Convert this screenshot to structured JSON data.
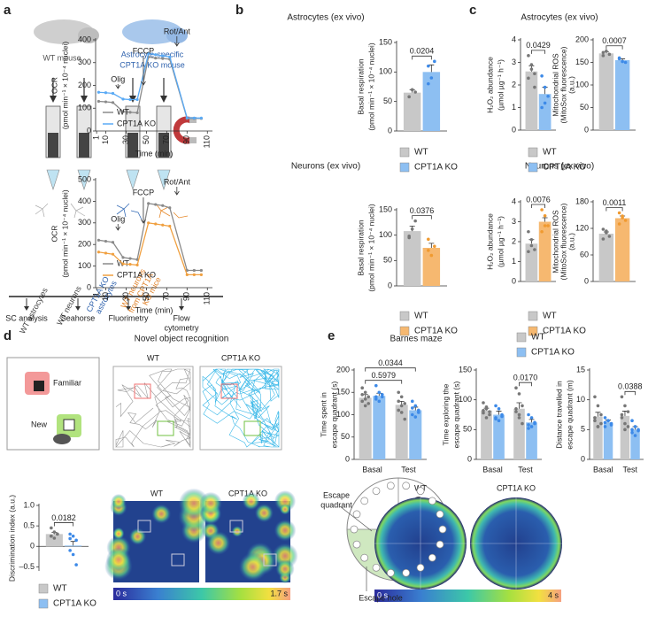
{
  "panel_letters": [
    "a",
    "b",
    "c",
    "d",
    "e"
  ],
  "panel_a": {
    "wt_mouse": "WT mouse",
    "ko_mouse": [
      "Astrocyte-specific",
      "CPT1A KO mouse"
    ],
    "samples": [
      [
        "WT astrocytes"
      ],
      [
        "WT neurons"
      ],
      [
        "CPT1A KO",
        "astrocytes"
      ],
      [
        "WT neurons",
        "from CPT1A",
        "KO mice"
      ]
    ],
    "methods": [
      [
        "SC analysis"
      ],
      [
        "Seahorse"
      ],
      [
        "Fluorimetry"
      ],
      [
        "Flow",
        "cytometry"
      ]
    ]
  },
  "titles": {
    "b": [
      "Astrocytes (ex vivo)",
      "Neurons (ex vivo)"
    ],
    "c": [
      "Astrocytes (ex vivo)",
      "Neurons (ex vivo)"
    ],
    "d": "Novel object recognition",
    "e": "Barnes maze"
  },
  "panel_d": {
    "familiar": "Familiar",
    "new": "New",
    "tracks": [
      "WT",
      "CPT1A KO"
    ],
    "heatmaps": [
      "WT",
      "CPT1A KO"
    ],
    "colorbar": [
      "0 s",
      "1.7 s"
    ]
  },
  "panel_e": {
    "escape_quadrant": [
      "Escape",
      "quadrant"
    ],
    "escape_hole": "Escape hole",
    "heatmaps": [
      "WT",
      "CPT1A KO"
    ],
    "colorbar": [
      "0 s",
      "4 s"
    ]
  },
  "chart_data": [
    {
      "type": "line",
      "ylabel": [
        "OCR",
        "(pmol min⁻¹ × 10⁻⁴ nuclei)"
      ],
      "xlabel": "Time (min)",
      "x": [
        3,
        10,
        17,
        27,
        34,
        41,
        52,
        59,
        66,
        73,
        90,
        97,
        104
      ],
      "series": [
        {
          "name": "WT",
          "color": "#8a8a8a",
          "values": [
            130,
            128,
            125,
            85,
            82,
            80,
            325,
            320,
            318,
            315,
            55,
            55,
            55
          ]
        },
        {
          "name": "CPT1A KO",
          "color": "#5aaaf5",
          "values": [
            170,
            168,
            165,
            140,
            138,
            138,
            340,
            335,
            330,
            325,
            58,
            57,
            57
          ]
        }
      ],
      "xlim": [
        0,
        115
      ],
      "xticks": [
        1,
        10,
        30,
        50,
        70,
        90,
        110
      ],
      "ylim": [
        0,
        400
      ],
      "yticks": [
        0,
        100,
        200,
        300,
        400
      ],
      "annotations": [
        {
          "label": "Olig",
          "x": 22
        },
        {
          "label": "FCCP",
          "x": 47
        },
        {
          "label": "Rot/Ant",
          "x": 80
        }
      ]
    },
    {
      "type": "bar",
      "ylabel": [
        "Basal respiration",
        "(pmol min⁻¹ × 10⁻⁴ nuclei)"
      ],
      "series": [
        {
          "name": "WT",
          "color": "#c8c8c8",
          "values": [
            65
          ],
          "errors": [
            5
          ],
          "points": [
            [
              58,
              70,
              66
            ]
          ]
        },
        {
          "name": "CPT1A KO",
          "color": "#8dbff2",
          "values": [
            100
          ],
          "errors": [
            12
          ],
          "points": [
            [
              80,
              90,
              118,
              110
            ]
          ]
        }
      ],
      "ylim": [
        0,
        150
      ],
      "yticks": [
        0,
        50,
        100,
        150
      ],
      "pvalues": [
        "0.0204"
      ]
    },
    {
      "type": "line",
      "ylabel": [
        "OCR",
        "(pmol min⁻¹ × 10⁻⁴ nuclei)"
      ],
      "xlabel": "Time (min)",
      "x": [
        3,
        10,
        17,
        27,
        34,
        41,
        52,
        59,
        66,
        73,
        90,
        97,
        104
      ],
      "series": [
        {
          "name": "WT",
          "color": "#8a8a8a",
          "values": [
            220,
            215,
            210,
            140,
            135,
            130,
            390,
            385,
            380,
            370,
            80,
            80,
            80
          ]
        },
        {
          "name": "CPT1A KO",
          "color": "#f0a040",
          "values": [
            165,
            160,
            155,
            110,
            108,
            105,
            300,
            295,
            290,
            285,
            60,
            60,
            60
          ]
        }
      ],
      "xlim": [
        0,
        115
      ],
      "xticks": [
        1,
        10,
        30,
        50,
        70,
        90,
        110
      ],
      "ylim": [
        0,
        500
      ],
      "yticks": [
        0,
        100,
        200,
        300,
        400,
        500
      ],
      "annotations": [
        {
          "label": "Olig",
          "x": 22
        },
        {
          "label": "FCCP",
          "x": 47
        },
        {
          "label": "Rot/Ant",
          "x": 80
        }
      ]
    },
    {
      "type": "bar",
      "ylabel": [
        "Basal respiration",
        "(pmol min⁻¹ × 10⁻⁴ nuclei)"
      ],
      "series": [
        {
          "name": "WT",
          "color": "#c8c8c8",
          "values": [
            108
          ],
          "errors": [
            10
          ],
          "points": [
            [
              95,
              112,
              128,
              98
            ]
          ]
        },
        {
          "name": "CPT1A KO",
          "color": "#f6b870",
          "values": [
            75
          ],
          "errors": [
            9
          ],
          "points": [
            [
              92,
              60,
              78,
              70
            ]
          ]
        }
      ],
      "ylim": [
        0,
        150
      ],
      "yticks": [
        0,
        50,
        100,
        150
      ],
      "pvalues": [
        "0.0376"
      ]
    },
    {
      "type": "bar",
      "ylabel": [
        "H₂O₂ abundance",
        "(µmol µg⁻¹ h⁻¹)"
      ],
      "series": [
        {
          "name": "WT",
          "color": "#c8c8c8",
          "values": [
            2.6
          ],
          "errors": [
            0.25
          ],
          "points": [
            [
              3.3,
              2.9,
              2.5,
              2.3,
              2.7,
              1.9
            ]
          ]
        },
        {
          "name": "CPT1A KO",
          "color": "#8dbff2",
          "values": [
            1.6
          ],
          "errors": [
            0.3
          ],
          "points": [
            [
              2.4,
              1.9,
              1.5,
              1.0,
              1.2
            ]
          ]
        }
      ],
      "ylim": [
        0,
        4
      ],
      "yticks": [
        0,
        1,
        2,
        3,
        4
      ],
      "pvalues": [
        "0.0429"
      ]
    },
    {
      "type": "bar",
      "ylabel": [
        "Mitochondrial ROS",
        "(MitoSox fluorescence)",
        "(a.u.)"
      ],
      "series": [
        {
          "color": "#c8c8c8",
          "values": [
            170
          ],
          "errors": [
            3
          ],
          "points": [
            [
              172,
              175,
              168,
              165
            ]
          ]
        },
        {
          "color": "#8dbff2",
          "values": [
            155
          ],
          "errors": [
            3
          ],
          "points": [
            [
              160,
              152,
              150,
              158
            ]
          ]
        }
      ],
      "ylim": [
        0,
        200
      ],
      "yticks": [
        0,
        50,
        100,
        150,
        200
      ],
      "pvalues": [
        "0.0007"
      ]
    },
    {
      "type": "bar",
      "ylabel": [
        "H₂O₂ abundance",
        "(µmol µg⁻¹ h⁻¹)"
      ],
      "series": [
        {
          "name": "WT",
          "color": "#c8c8c8",
          "values": [
            1.9
          ],
          "errors": [
            0.2
          ],
          "points": [
            [
              2.5,
              2.1,
              1.6,
              1.5,
              1.8
            ]
          ]
        },
        {
          "name": "CPT1A KO",
          "color": "#f6b870",
          "values": [
            3.0
          ],
          "errors": [
            0.2
          ],
          "points": [
            [
              3.6,
              3.3,
              2.8,
              2.5,
              2.8
            ]
          ]
        }
      ],
      "ylim": [
        0,
        4
      ],
      "yticks": [
        0,
        1,
        2,
        3,
        4
      ],
      "pvalues": [
        "0.0076"
      ]
    },
    {
      "type": "bar",
      "ylabel": [
        "Mitochondrial ROS",
        "(MitoSox fluorescence)",
        "(a.u.)"
      ],
      "series": [
        {
          "color": "#c8c8c8",
          "values": [
            108
          ],
          "errors": [
            4
          ],
          "points": [
            [
              118,
              110,
              102,
              96,
              114
            ]
          ]
        },
        {
          "color": "#f6b870",
          "values": [
            143
          ],
          "errors": [
            5
          ],
          "points": [
            [
              155,
              148,
              138,
              130,
              144
            ]
          ]
        }
      ],
      "ylim": [
        0,
        180
      ],
      "yticks": [
        0,
        60,
        120,
        180
      ],
      "pvalues": [
        "0.0011"
      ]
    },
    {
      "type": "bar",
      "ylabel": [
        "Discrimination index (a.u.)"
      ],
      "series": [
        {
          "name": "WT",
          "color": "#c8c8c8",
          "values": [
            0.3
          ],
          "errors": [
            0.04
          ],
          "points": [
            [
              0.45,
              0.35,
              0.3,
              0.25,
              0.2,
              0.3,
              0.25
            ]
          ]
        },
        {
          "name": "CPT1A KO",
          "color": "#8dbff2",
          "values": [
            0.02
          ],
          "errors": [
            0.1
          ],
          "points": [
            [
              0.3,
              0.25,
              0.15,
              -0.1,
              -0.2,
              -0.45,
              0.19
            ]
          ]
        }
      ],
      "ylim": [
        -0.6,
        1.0
      ],
      "yticks": [
        {
          "value": -0.5,
          "label": "–0.5"
        },
        0,
        0.5,
        {
          "value": 1,
          "label": "1.0"
        }
      ],
      "pvalues": [
        "0.0182"
      ]
    },
    {
      "type": "bar",
      "ylabel": [
        "Time spent in",
        "escape quadrant (s)"
      ],
      "categories": [
        "Basal",
        "Test"
      ],
      "series": [
        {
          "name": "WT",
          "color": "#c8c8c8",
          "values": [
            138,
            122
          ],
          "errors": [
            7,
            8
          ],
          "points": [
            [
              160,
              150,
              140,
              130,
              120,
              125,
              145,
              135
            ],
            [
              150,
              140,
              125,
              110,
              105,
              90,
              130,
              120
            ]
          ]
        },
        {
          "name": "CPT1A KO",
          "color": "#8dbff2",
          "values": [
            142,
            110
          ],
          "errors": [
            6,
            7
          ],
          "points": [
            [
              165,
              150,
              140,
              135,
              130,
              145,
              140
            ],
            [
              130,
              120,
              110,
              100,
              95,
              105,
              115
            ]
          ]
        }
      ],
      "ylim": [
        0,
        200
      ],
      "yticks": [
        0,
        50,
        100,
        150,
        200
      ],
      "pvalues": [
        "0.5979",
        "0.0344"
      ]
    },
    {
      "type": "bar",
      "ylabel": [
        "Time exploring the",
        "escape quadrant (s)"
      ],
      "categories": [
        "Basal",
        "Test"
      ],
      "series": [
        {
          "color": "#c8c8c8",
          "values": [
            82,
            85
          ],
          "errors": [
            4,
            10
          ],
          "points": [
            [
              95,
              88,
              80,
              78,
              85,
              75,
              82,
              70
            ],
            [
              120,
              110,
              90,
              80,
              75,
              60,
              85,
              70
            ]
          ]
        },
        {
          "color": "#8dbff2",
          "values": [
            75,
            62
          ],
          "errors": [
            6,
            5
          ],
          "points": [
            [
              90,
              85,
              75,
              70,
              65,
              72,
              68
            ],
            [
              75,
              70,
              62,
              58,
              55,
              60,
              52
            ]
          ]
        }
      ],
      "ylim": [
        0,
        150
      ],
      "yticks": [
        0,
        50,
        100,
        150
      ],
      "pvalues": [
        "0.0170"
      ]
    },
    {
      "type": "bar",
      "ylabel": [
        "Distance travelled in",
        "escape quadrant (m)"
      ],
      "categories": [
        "Basal",
        "Test"
      ],
      "series": [
        {
          "color": "#c8c8c8",
          "values": [
            7.2,
            7.3
          ],
          "errors": [
            0.7,
            0.8
          ],
          "points": [
            [
              10.5,
              9,
              7.5,
              6.5,
              5.5,
              6,
              7,
              5.5
            ],
            [
              10.5,
              9,
              8,
              7,
              6,
              5.5,
              7.5,
              5
            ]
          ]
        },
        {
          "color": "#8dbff2",
          "values": [
            6.2,
            5.0
          ],
          "errors": [
            0.4,
            0.5
          ],
          "points": [
            [
              7,
              6.5,
              6,
              5.5,
              6.5,
              5.8,
              6.2
            ],
            [
              6.5,
              5.5,
              5,
              4.5,
              4,
              4.8,
              5
            ]
          ]
        }
      ],
      "ylim": [
        0,
        15
      ],
      "yticks": [
        0,
        5,
        10,
        15
      ],
      "pvalues": [
        "0.0388"
      ]
    }
  ]
}
